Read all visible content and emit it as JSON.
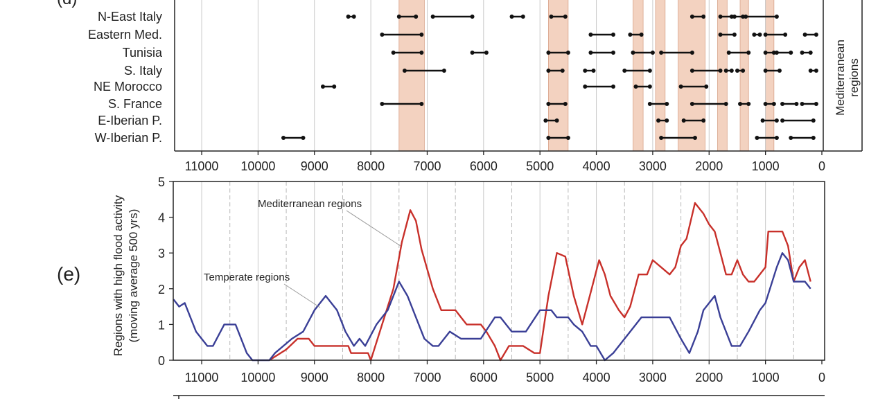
{
  "panel_d": {
    "label": "(d)",
    "side_label_line1": "Mediterranean",
    "side_label_line2": "regions"
  },
  "panel_e": {
    "label": "(e)",
    "ylabel_line1": "Regions with high flood activity",
    "ylabel_line2": "(moving average 500 yrs)"
  },
  "colors": {
    "band_fill": "#f3d2c0",
    "band_stroke": "#d9a48b",
    "mediterranean": "#c8302a",
    "temperate": "#3a3f96",
    "axis": "#222222",
    "grid_solid": "#c8c8c8",
    "grid_dashed": "#b8b8b8"
  },
  "chart_data": [
    {
      "type": "timeline",
      "panel": "(d)",
      "x_ticks": [
        11000,
        10000,
        9000,
        8000,
        7000,
        6000,
        5000,
        4000,
        3000,
        2000,
        1000,
        0
      ],
      "x_tick_labels": [
        "11000",
        "10000",
        "9000",
        "8000",
        "7000",
        "6000",
        "5000",
        "4000",
        "3000",
        "2000",
        "1000",
        "0"
      ],
      "xlim": [
        11500,
        0
      ],
      "x_reversed": true,
      "bands": [
        [
          7500,
          7050
        ],
        [
          4850,
          4500
        ],
        [
          3350,
          3170
        ],
        [
          2950,
          2780
        ],
        [
          2550,
          2070
        ],
        [
          1850,
          1680
        ],
        [
          1450,
          1300
        ],
        [
          1000,
          850
        ]
      ],
      "regions": [
        {
          "name": "N-East Italy",
          "segments": [
            [
              8400,
              8300
            ],
            [
              7500,
              7200
            ],
            [
              6900,
              6200
            ],
            [
              5500,
              5300
            ],
            [
              4800,
              4550
            ],
            [
              2300,
              2100
            ],
            [
              1800,
              1600
            ],
            [
              1550,
              1400
            ],
            [
              1350,
              800
            ]
          ]
        },
        {
          "name": "Eastern Med.",
          "segments": [
            [
              7800,
              7100
            ],
            [
              4100,
              3700
            ],
            [
              3400,
              3200
            ],
            [
              1800,
              1550
            ],
            [
              1200,
              1100
            ],
            [
              1000,
              650
            ],
            [
              300,
              100
            ]
          ]
        },
        {
          "name": "Tunisia",
          "segments": [
            [
              7600,
              7100
            ],
            [
              6200,
              5950
            ],
            [
              4850,
              4500
            ],
            [
              4100,
              3700
            ],
            [
              3350,
              3000
            ],
            [
              2850,
              2300
            ],
            [
              1650,
              1300
            ],
            [
              1000,
              850
            ],
            [
              800,
              550
            ],
            [
              350,
              200
            ]
          ]
        },
        {
          "name": "S. Italy",
          "segments": [
            [
              7400,
              6700
            ],
            [
              4850,
              4600
            ],
            [
              4200,
              4050
            ],
            [
              3500,
              3050
            ],
            [
              2300,
              1800
            ],
            [
              1700,
              1600
            ],
            [
              1500,
              1400
            ],
            [
              1000,
              750
            ],
            [
              200,
              100
            ]
          ]
        },
        {
          "name": "NE Morocco",
          "segments": [
            [
              8850,
              8650
            ],
            [
              4200,
              3700
            ],
            [
              3300,
              3050
            ],
            [
              2500,
              2050
            ]
          ]
        },
        {
          "name": "S. France",
          "segments": [
            [
              7800,
              7100
            ],
            [
              4850,
              4550
            ],
            [
              3050,
              2750
            ],
            [
              2300,
              1700
            ],
            [
              1450,
              1300
            ],
            [
              1000,
              850
            ],
            [
              700,
              450
            ],
            [
              350,
              100
            ]
          ]
        },
        {
          "name": "E-Iberian P.",
          "segments": [
            [
              4900,
              4700
            ],
            [
              2900,
              2750
            ],
            [
              2450,
              2100
            ],
            [
              1050,
              800
            ],
            [
              700,
              150
            ]
          ]
        },
        {
          "name": "W-Iberian P.",
          "segments": [
            [
              9550,
              9200
            ],
            [
              4850,
              4500
            ],
            [
              2850,
              2250
            ],
            [
              1150,
              800
            ],
            [
              550,
              150
            ]
          ]
        }
      ]
    },
    {
      "type": "line",
      "panel": "(e)",
      "xlim": [
        11500,
        0
      ],
      "x_reversed": true,
      "ylim": [
        0,
        5
      ],
      "y_ticks": [
        0,
        1,
        2,
        3,
        4,
        5
      ],
      "y_tick_labels": [
        "0",
        "1",
        "2",
        "3",
        "4",
        "5"
      ],
      "x_ticks": [
        11000,
        10000,
        9000,
        8000,
        7000,
        6000,
        5000,
        4000,
        3000,
        2000,
        1000,
        0
      ],
      "x_tick_labels": [
        "11000",
        "10000",
        "9000",
        "8000",
        "7000",
        "6000",
        "5000",
        "4000",
        "3000",
        "2000",
        "1000",
        "0"
      ],
      "dashed_x": [
        10500,
        9500,
        8500,
        7500,
        6500,
        5500,
        4500,
        3500,
        2500,
        1500,
        500
      ],
      "ylabel": "Regions with high flood activity (moving average 500 yrs)",
      "series": [
        {
          "name": "Mediterranean regions",
          "color": "#c8302a",
          "points": [
            [
              9800,
              0
            ],
            [
              9500,
              0.3
            ],
            [
              9300,
              0.6
            ],
            [
              9100,
              0.6
            ],
            [
              9000,
              0.4
            ],
            [
              8400,
              0.4
            ],
            [
              8350,
              0.2
            ],
            [
              8050,
              0.2
            ],
            [
              8000,
              0
            ],
            [
              7800,
              1.0
            ],
            [
              7600,
              2.0
            ],
            [
              7450,
              3.3
            ],
            [
              7300,
              4.2
            ],
            [
              7200,
              3.9
            ],
            [
              7100,
              3.1
            ],
            [
              6900,
              2.0
            ],
            [
              6750,
              1.4
            ],
            [
              6500,
              1.4
            ],
            [
              6400,
              1.2
            ],
            [
              6300,
              1.0
            ],
            [
              6050,
              1.0
            ],
            [
              5950,
              0.8
            ],
            [
              5800,
              0.4
            ],
            [
              5700,
              0.0
            ],
            [
              5550,
              0.4
            ],
            [
              5300,
              0.4
            ],
            [
              5100,
              0.2
            ],
            [
              5000,
              0.2
            ],
            [
              4850,
              1.8
            ],
            [
              4700,
              3.0
            ],
            [
              4550,
              2.9
            ],
            [
              4400,
              1.8
            ],
            [
              4250,
              1.0
            ],
            [
              4150,
              1.6
            ],
            [
              3950,
              2.8
            ],
            [
              3850,
              2.4
            ],
            [
              3750,
              1.8
            ],
            [
              3600,
              1.4
            ],
            [
              3500,
              1.2
            ],
            [
              3400,
              1.5
            ],
            [
              3250,
              2.4
            ],
            [
              3100,
              2.4
            ],
            [
              3000,
              2.8
            ],
            [
              2850,
              2.6
            ],
            [
              2700,
              2.4
            ],
            [
              2600,
              2.6
            ],
            [
              2500,
              3.2
            ],
            [
              2400,
              3.4
            ],
            [
              2250,
              4.4
            ],
            [
              2100,
              4.1
            ],
            [
              2000,
              3.8
            ],
            [
              1900,
              3.6
            ],
            [
              1800,
              3.0
            ],
            [
              1700,
              2.4
            ],
            [
              1600,
              2.4
            ],
            [
              1500,
              2.8
            ],
            [
              1400,
              2.4
            ],
            [
              1300,
              2.2
            ],
            [
              1200,
              2.2
            ],
            [
              1000,
              2.6
            ],
            [
              950,
              3.6
            ],
            [
              700,
              3.6
            ],
            [
              600,
              3.2
            ],
            [
              500,
              2.2
            ],
            [
              400,
              2.6
            ],
            [
              300,
              2.8
            ],
            [
              200,
              2.2
            ]
          ]
        },
        {
          "name": "Temperate regions",
          "color": "#3a3f96",
          "points": [
            [
              11500,
              1.7
            ],
            [
              11400,
              1.5
            ],
            [
              11300,
              1.6
            ],
            [
              11100,
              0.8
            ],
            [
              10900,
              0.4
            ],
            [
              10800,
              0.4
            ],
            [
              10600,
              1.0
            ],
            [
              10400,
              1.0
            ],
            [
              10200,
              0.2
            ],
            [
              10100,
              0
            ],
            [
              9800,
              0
            ],
            [
              9700,
              0.2
            ],
            [
              9400,
              0.6
            ],
            [
              9200,
              0.8
            ],
            [
              9000,
              1.4
            ],
            [
              8800,
              1.8
            ],
            [
              8600,
              1.4
            ],
            [
              8450,
              0.8
            ],
            [
              8300,
              0.4
            ],
            [
              8200,
              0.6
            ],
            [
              8100,
              0.4
            ],
            [
              7900,
              1.0
            ],
            [
              7700,
              1.4
            ],
            [
              7500,
              2.2
            ],
            [
              7350,
              1.8
            ],
            [
              7200,
              1.2
            ],
            [
              7050,
              0.6
            ],
            [
              6900,
              0.4
            ],
            [
              6800,
              0.4
            ],
            [
              6600,
              0.8
            ],
            [
              6400,
              0.6
            ],
            [
              6050,
              0.6
            ],
            [
              5800,
              1.2
            ],
            [
              5700,
              1.2
            ],
            [
              5500,
              0.8
            ],
            [
              5250,
              0.8
            ],
            [
              5000,
              1.4
            ],
            [
              4800,
              1.4
            ],
            [
              4700,
              1.2
            ],
            [
              4500,
              1.2
            ],
            [
              4400,
              1.0
            ],
            [
              4250,
              0.8
            ],
            [
              4100,
              0.4
            ],
            [
              4000,
              0.4
            ],
            [
              3850,
              0.0
            ],
            [
              3700,
              0.2
            ],
            [
              3400,
              0.8
            ],
            [
              3200,
              1.2
            ],
            [
              2700,
              1.2
            ],
            [
              2500,
              0.6
            ],
            [
              2350,
              0.2
            ],
            [
              2200,
              0.8
            ],
            [
              2100,
              1.4
            ],
            [
              1900,
              1.8
            ],
            [
              1800,
              1.2
            ],
            [
              1600,
              0.4
            ],
            [
              1450,
              0.4
            ],
            [
              1300,
              0.8
            ],
            [
              1100,
              1.4
            ],
            [
              1000,
              1.6
            ],
            [
              800,
              2.6
            ],
            [
              700,
              3.0
            ],
            [
              600,
              2.8
            ],
            [
              500,
              2.2
            ],
            [
              300,
              2.2
            ],
            [
              200,
              2.0
            ]
          ]
        }
      ],
      "annotations": [
        {
          "text": "Mediterranean regions"
        },
        {
          "text": "Temperate regions"
        }
      ]
    }
  ]
}
